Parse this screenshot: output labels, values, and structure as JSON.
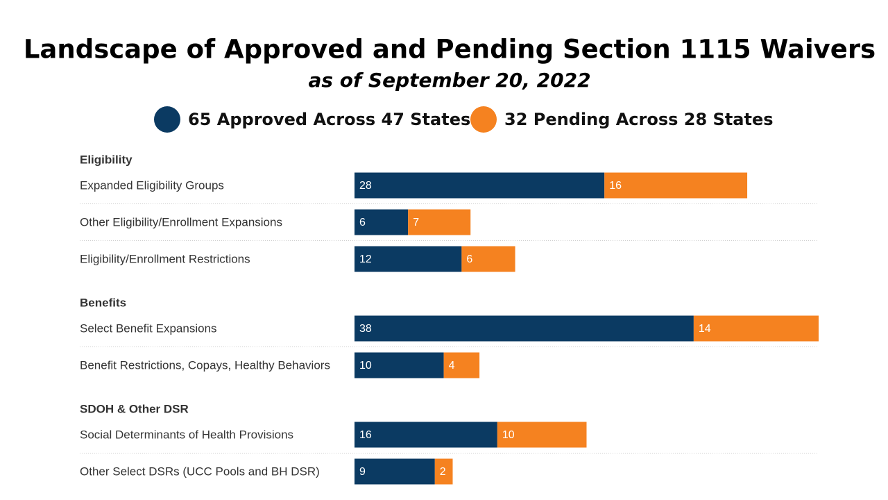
{
  "chart_data": {
    "type": "bar",
    "orientation": "horizontal",
    "stacked": true,
    "title": "Landscape of Approved and Pending Section 1115 Waivers",
    "subtitle": "as of September 20, 2022",
    "groups": [
      {
        "name": "Eligibility",
        "categories": [
          "Expanded Eligibility Groups",
          "Other Eligibility/Enrollment Expansions",
          "Eligibility/Enrollment Restrictions"
        ]
      },
      {
        "name": "Benefits",
        "categories": [
          "Select Benefit Expansions",
          "Benefit Restrictions, Copays, Healthy Behaviors"
        ]
      },
      {
        "name": "SDOH & Other DSR",
        "categories": [
          "Social Determinants of Health Provisions",
          "Other Select DSRs (UCC Pools and BH DSR)"
        ]
      }
    ],
    "series": [
      {
        "name": "65 Approved Across 47 States",
        "color": "#0b3a62",
        "values": [
          28,
          6,
          12,
          38,
          10,
          16,
          9
        ]
      },
      {
        "name": "32 Pending Across 28 States",
        "color": "#f58220",
        "values": [
          16,
          7,
          6,
          14,
          4,
          10,
          2
        ]
      }
    ]
  }
}
